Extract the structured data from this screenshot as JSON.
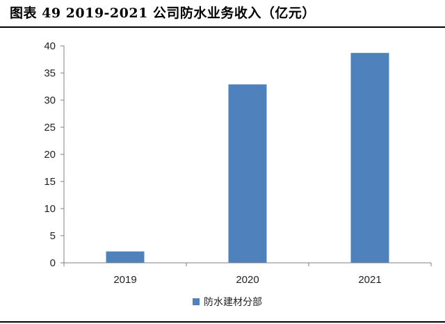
{
  "title": "图表 49 2019-2021 公司防水业务收入（亿元）",
  "chart_data": {
    "type": "bar",
    "categories": [
      "2019",
      "2020",
      "2021"
    ],
    "series": [
      {
        "name": "防水建材分部",
        "values": [
          2.1,
          32.9,
          38.7
        ]
      }
    ],
    "ylim": [
      0,
      40
    ],
    "yticks": [
      0,
      5,
      10,
      15,
      20,
      25,
      30,
      35,
      40
    ],
    "grid": false,
    "legend": "bottom-center",
    "colors": {
      "bar": "#4f81bd",
      "axis": "#808080"
    }
  }
}
